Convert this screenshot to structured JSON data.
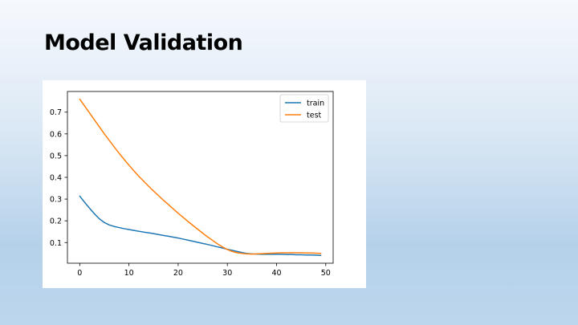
{
  "slide": {
    "title": "Model Validation"
  },
  "chart_data": {
    "type": "line",
    "xlim": [
      -2.5,
      51.5
    ],
    "ylim": [
      0.005,
      0.795
    ],
    "xticks": [
      0,
      10,
      20,
      30,
      40,
      50
    ],
    "yticks": [
      0.1,
      0.2,
      0.3,
      0.4,
      0.5,
      0.6,
      0.7
    ],
    "xlabel": "",
    "ylabel": "",
    "grid": false,
    "legend_position": "top-right",
    "x": [
      0,
      1,
      2,
      3,
      4,
      5,
      6,
      7,
      8,
      9,
      10,
      11,
      12,
      13,
      14,
      15,
      16,
      17,
      18,
      19,
      20,
      21,
      22,
      23,
      24,
      25,
      26,
      27,
      28,
      29,
      30,
      31,
      32,
      33,
      34,
      35,
      36,
      37,
      38,
      39,
      40,
      41,
      42,
      43,
      44,
      45,
      46,
      47,
      48,
      49
    ],
    "series": [
      {
        "name": "train",
        "color": "#1f77b4",
        "values": [
          0.314,
          0.285,
          0.258,
          0.232,
          0.209,
          0.192,
          0.181,
          0.174,
          0.169,
          0.164,
          0.16,
          0.156,
          0.152,
          0.148,
          0.145,
          0.141,
          0.137,
          0.133,
          0.129,
          0.125,
          0.121,
          0.116,
          0.111,
          0.106,
          0.101,
          0.096,
          0.091,
          0.086,
          0.08,
          0.075,
          0.069,
          0.064,
          0.059,
          0.054,
          0.05,
          0.048,
          0.047,
          0.046,
          0.046,
          0.046,
          0.046,
          0.046,
          0.045,
          0.045,
          0.044,
          0.044,
          0.043,
          0.043,
          0.042,
          0.041
        ]
      },
      {
        "name": "test",
        "color": "#ff7f0e",
        "values": [
          0.76,
          0.728,
          0.696,
          0.664,
          0.632,
          0.6,
          0.57,
          0.54,
          0.511,
          0.483,
          0.456,
          0.43,
          0.405,
          0.382,
          0.359,
          0.337,
          0.316,
          0.295,
          0.275,
          0.255,
          0.235,
          0.216,
          0.197,
          0.179,
          0.161,
          0.143,
          0.126,
          0.11,
          0.094,
          0.08,
          0.068,
          0.059,
          0.053,
          0.05,
          0.048,
          0.047,
          0.048,
          0.049,
          0.05,
          0.051,
          0.052,
          0.053,
          0.053,
          0.053,
          0.053,
          0.053,
          0.052,
          0.052,
          0.051,
          0.05
        ]
      }
    ]
  }
}
